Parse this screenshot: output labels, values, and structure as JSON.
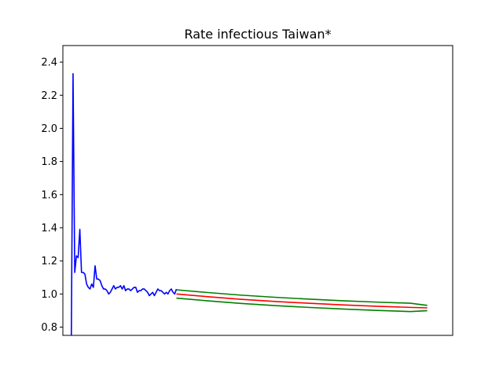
{
  "chart_data": {
    "type": "line",
    "title": "Rate infectious Taiwan*",
    "xlabel": "",
    "ylabel": "",
    "ylim": [
      0.75,
      2.5
    ],
    "xlim": [
      -5,
      225
    ],
    "y_ticks": [
      0.8,
      1.0,
      1.2,
      1.4,
      1.6,
      1.8,
      2.0,
      2.2,
      2.4
    ],
    "y_tick_labels": [
      "0.8",
      "1.0",
      "1.2",
      "1.4",
      "1.6",
      "1.8",
      "2.0",
      "2.2",
      "2.4"
    ],
    "x_ticks": [],
    "grid": false,
    "series": [
      {
        "color": "#0000ff",
        "x": [
          0,
          1,
          2,
          3,
          4,
          5,
          6,
          7,
          8,
          9,
          10,
          11,
          12,
          13,
          14,
          15,
          16,
          17,
          18,
          19,
          20,
          21,
          22,
          23,
          24,
          25,
          26,
          27,
          28,
          29,
          30,
          31,
          32,
          33,
          34,
          35,
          36,
          37,
          38,
          39,
          40,
          41,
          42,
          43,
          44,
          45,
          46,
          47,
          48,
          49,
          50,
          51,
          52,
          53,
          54,
          55,
          56,
          57,
          58,
          59,
          60,
          61,
          62
        ],
        "values": [
          0.75,
          2.33,
          1.13,
          1.23,
          1.22,
          1.39,
          1.13,
          1.13,
          1.12,
          1.06,
          1.04,
          1.03,
          1.06,
          1.04,
          1.17,
          1.09,
          1.09,
          1.08,
          1.05,
          1.03,
          1.03,
          1.02,
          1.0,
          1.01,
          1.03,
          1.05,
          1.03,
          1.04,
          1.04,
          1.05,
          1.03,
          1.05,
          1.02,
          1.03,
          1.03,
          1.02,
          1.03,
          1.04,
          1.04,
          1.01,
          1.02,
          1.02,
          1.03,
          1.03,
          1.02,
          1.01,
          0.99,
          1.0,
          1.01,
          0.99,
          1.01,
          1.03,
          1.02,
          1.02,
          1.01,
          1.0,
          1.01,
          1.0,
          1.02,
          1.03,
          1.01,
          1.0,
          1.03
        ]
      },
      {
        "color": "#ff0000",
        "x": [
          62,
          80,
          100,
          120,
          140,
          160,
          180,
          200,
          210
        ],
        "values": [
          1.0,
          0.984,
          0.968,
          0.955,
          0.944,
          0.934,
          0.926,
          0.919,
          0.916
        ]
      },
      {
        "color": "#008000",
        "x": [
          62,
          80,
          100,
          120,
          140,
          160,
          180,
          200,
          210
        ],
        "values": [
          1.025,
          1.009,
          0.993,
          0.98,
          0.969,
          0.959,
          0.951,
          0.944,
          0.931
        ]
      },
      {
        "color": "#008000",
        "x": [
          62,
          80,
          100,
          120,
          140,
          160,
          180,
          200,
          210
        ],
        "values": [
          0.975,
          0.959,
          0.943,
          0.93,
          0.919,
          0.909,
          0.901,
          0.894,
          0.899
        ]
      }
    ]
  }
}
